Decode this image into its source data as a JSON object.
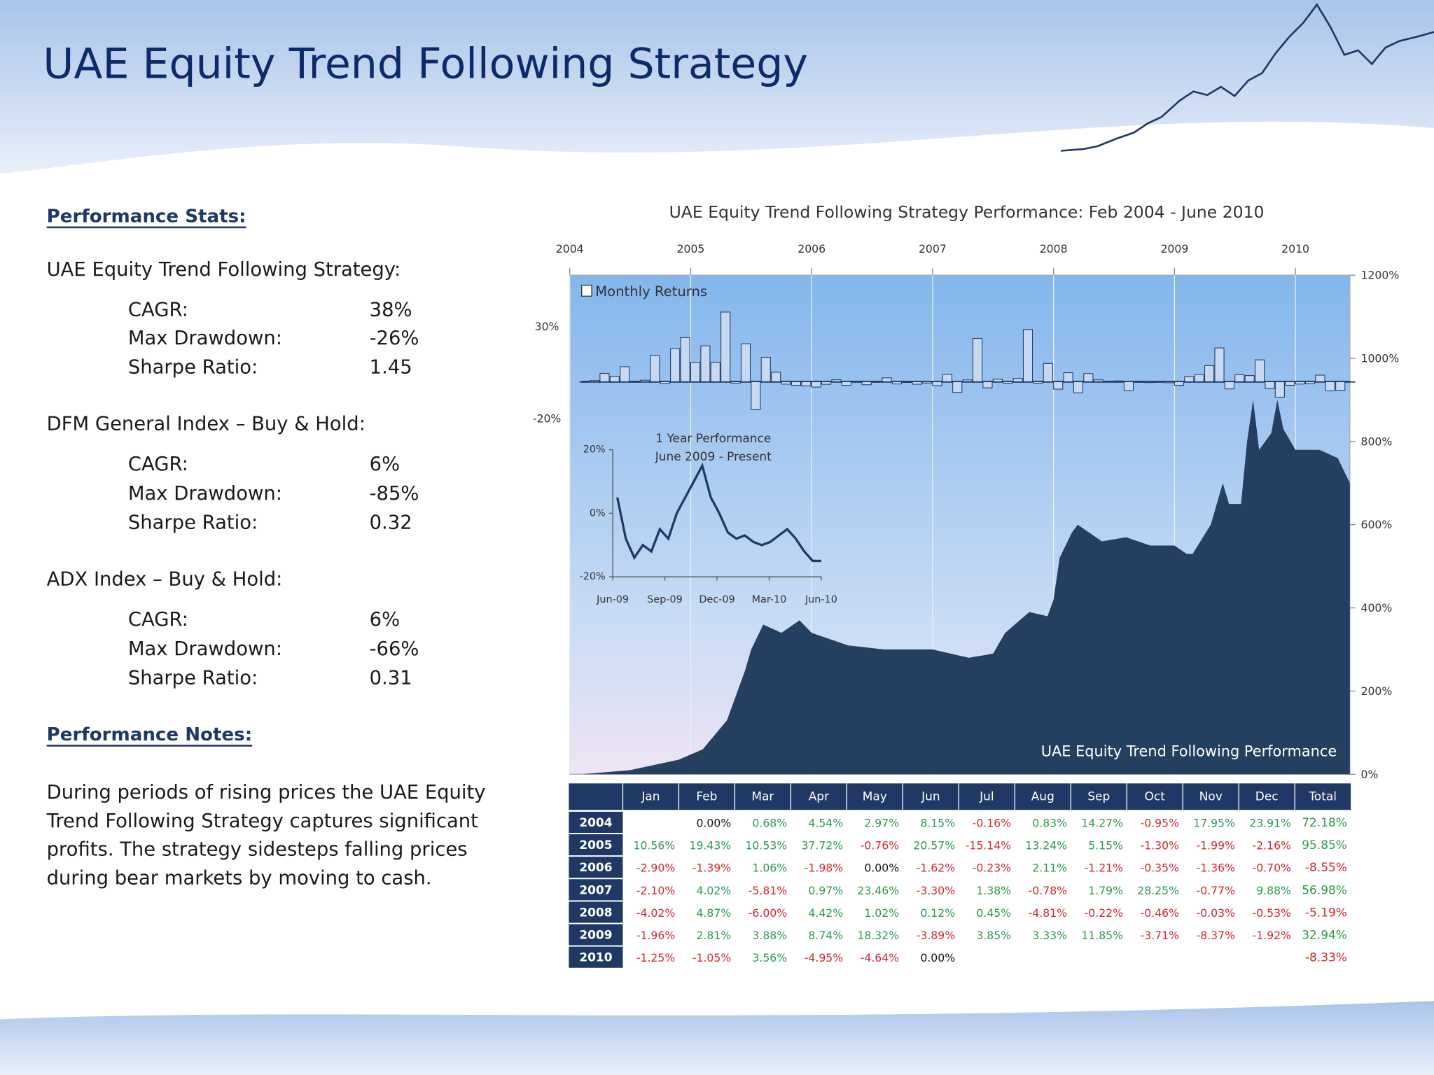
{
  "title": "UAE Equity Trend Following Strategy",
  "stats_heading": "Performance Stats:",
  "strategies": [
    {
      "name": "UAE Equity Trend Following Strategy:",
      "stats": [
        {
          "label": "CAGR:",
          "value": "38%"
        },
        {
          "label": "Max Drawdown:",
          "value": "-26%"
        },
        {
          "label": "Sharpe Ratio:",
          "value": "1.45"
        }
      ]
    },
    {
      "name": "DFM General Index – Buy & Hold:",
      "stats": [
        {
          "label": "CAGR:",
          "value": "6%"
        },
        {
          "label": "Max Drawdown:",
          "value": "-85%"
        },
        {
          "label": "Sharpe Ratio:",
          "value": "0.32"
        }
      ]
    },
    {
      "name": "ADX Index – Buy & Hold:",
      "stats": [
        {
          "label": "CAGR:",
          "value": "6%"
        },
        {
          "label": "Max Drawdown:",
          "value": "-66%"
        },
        {
          "label": "Sharpe Ratio:",
          "value": "0.31"
        }
      ]
    }
  ],
  "notes_heading": "Performance Notes:",
  "notes_lines": [
    "During periods of rising prices the UAE Equity",
    "Trend Following Strategy captures significant",
    "profits.   The strategy sidesteps falling prices",
    "during bear markets by moving to cash."
  ],
  "chart_data": {
    "type": "area",
    "title": "UAE Equity Trend Following  Strategy Performance:  Feb 2004  -  June 2010",
    "series_label": "UAE Equity Trend Following Performance",
    "color": "#243f60",
    "x": [
      2004.1,
      2004.5,
      2004.9,
      2005.1,
      2005.3,
      2005.45,
      2005.5,
      2005.6,
      2005.75,
      2005.9,
      2006.0,
      2006.3,
      2006.6,
      2007.0,
      2007.3,
      2007.5,
      2007.6,
      2007.8,
      2007.95,
      2008.0,
      2008.05,
      2008.15,
      2008.2,
      2008.4,
      2008.6,
      2008.8,
      2009.0,
      2009.1,
      2009.15,
      2009.3,
      2009.4,
      2009.45,
      2009.55,
      2009.6,
      2009.65,
      2009.7,
      2009.8,
      2009.85,
      2009.9,
      2010.0,
      2010.2,
      2010.35,
      2010.45
    ],
    "values": [
      0,
      10,
      35,
      60,
      130,
      250,
      300,
      360,
      340,
      370,
      340,
      310,
      300,
      300,
      280,
      290,
      340,
      390,
      380,
      420,
      520,
      580,
      600,
      560,
      570,
      550,
      550,
      530,
      530,
      600,
      700,
      650,
      650,
      800,
      900,
      780,
      820,
      900,
      830,
      780,
      780,
      760,
      700
    ],
    "xlim": [
      2004,
      2010.45
    ],
    "xticks": [
      2004,
      2005,
      2006,
      2007,
      2008,
      2009,
      2010
    ],
    "y2lim": [
      0,
      1200
    ],
    "y2ticks": [
      {
        "value": 0,
        "label": "0%"
      },
      {
        "value": 200,
        "label": "200%"
      },
      {
        "value": 400,
        "label": "400%"
      },
      {
        "value": 600,
        "label": "600%"
      },
      {
        "value": 800,
        "label": "800%"
      },
      {
        "value": 1000,
        "label": "1000%"
      },
      {
        "value": 1200,
        "label": "1200%"
      }
    ],
    "bars": {
      "name": "Monthly Returns",
      "ylim": [
        -20,
        30
      ],
      "yticks": [
        {
          "value": 30,
          "label": "30%"
        },
        {
          "value": -20,
          "label": "-20%"
        }
      ],
      "color": "#c6d9f1"
    },
    "inset": {
      "type": "line",
      "title_lines": [
        "1 Year Performance",
        "June 2009 - Present"
      ],
      "values": [
        5,
        -8,
        -14,
        -10,
        -12,
        -5,
        -8,
        0,
        5,
        10,
        15,
        5,
        0,
        -6,
        -8,
        -7,
        -9,
        -10,
        -9,
        -7,
        -5,
        -8,
        -12,
        -15,
        -15
      ],
      "ylim": [
        -20,
        20
      ],
      "yticks": [
        {
          "value": 20,
          "label": "20%"
        },
        {
          "value": 0,
          "label": "0%"
        },
        {
          "value": -20,
          "label": "-20%"
        }
      ],
      "xtick_labels": [
        "Jun-09",
        "Sep-09",
        "Dec-09",
        "Mar-10",
        "Jun-10"
      ]
    }
  },
  "table": {
    "header": [
      "Jan",
      "Feb",
      "Mar",
      "Apr",
      "May",
      "Jun",
      "Jul",
      "Aug",
      "Sep",
      "Oct",
      "Nov",
      "Dec",
      "Total"
    ],
    "rows": [
      {
        "year": "2004",
        "cells": [
          null,
          "0.00%",
          "0.68%",
          "4.54%",
          "2.97%",
          "8.15%",
          "-0.16%",
          "0.83%",
          "14.27%",
          "-0.95%",
          "17.95%",
          "23.91%",
          "72.18%"
        ]
      },
      {
        "year": "2005",
        "cells": [
          "10.56%",
          "19.43%",
          "10.53%",
          "37.72%",
          "-0.76%",
          "20.57%",
          "-15.14%",
          "13.24%",
          "5.15%",
          "-1.30%",
          "-1.99%",
          "-2.16%",
          "95.85%"
        ]
      },
      {
        "year": "2006",
        "cells": [
          "-2.90%",
          "-1.39%",
          "1.06%",
          "-1.98%",
          "0.00%",
          "-1.62%",
          "-0.23%",
          "2.11%",
          "-1.21%",
          "-0.35%",
          "-1.36%",
          "-0.70%",
          "-8.55%"
        ]
      },
      {
        "year": "2007",
        "cells": [
          "-2.10%",
          "4.02%",
          "-5.81%",
          "0.97%",
          "23.46%",
          "-3.30%",
          "1.38%",
          "-0.78%",
          "1.79%",
          "28.25%",
          "-0.77%",
          "9.88%",
          "56.98%"
        ]
      },
      {
        "year": "2008",
        "cells": [
          "-4.02%",
          "4.87%",
          "-6.00%",
          "4.42%",
          "1.02%",
          "0.12%",
          "0.45%",
          "-4.81%",
          "-0.22%",
          "-0.46%",
          "-0.03%",
          "-0.53%",
          "-5.19%"
        ]
      },
      {
        "year": "2009",
        "cells": [
          "-1.96%",
          "2.81%",
          "3.88%",
          "8.74%",
          "18.32%",
          "-3.89%",
          "3.85%",
          "3.33%",
          "11.85%",
          "-3.71%",
          "-8.37%",
          "-1.92%",
          "32.94%"
        ]
      },
      {
        "year": "2010",
        "cells": [
          "-1.25%",
          "-1.05%",
          "3.56%",
          "-4.95%",
          "-4.64%",
          "0.00%",
          null,
          null,
          null,
          null,
          null,
          null,
          "-8.33%"
        ]
      }
    ]
  }
}
